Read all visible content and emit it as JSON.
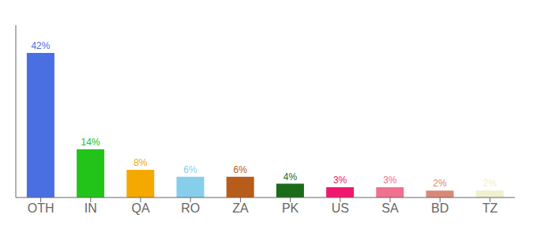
{
  "chart_data": {
    "type": "bar",
    "categories": [
      "OTH",
      "IN",
      "QA",
      "RO",
      "ZA",
      "PK",
      "US",
      "SA",
      "BD",
      "TZ"
    ],
    "values": [
      42,
      14,
      8,
      6,
      6,
      4,
      3,
      3,
      2,
      2
    ],
    "value_labels": [
      "42%",
      "14%",
      "8%",
      "6%",
      "6%",
      "4%",
      "3%",
      "3%",
      "2%",
      "2%"
    ],
    "data_labels": true,
    "colors": [
      "#4a6fe3",
      "#22c41a",
      "#f5a800",
      "#87ceeb",
      "#b85c1a",
      "#1a6b1a",
      "#f0186e",
      "#f07090",
      "#d98878",
      "#f0f0cc"
    ],
    "ylim": [
      0,
      50
    ],
    "grid": false,
    "tick_labels": "x"
  }
}
